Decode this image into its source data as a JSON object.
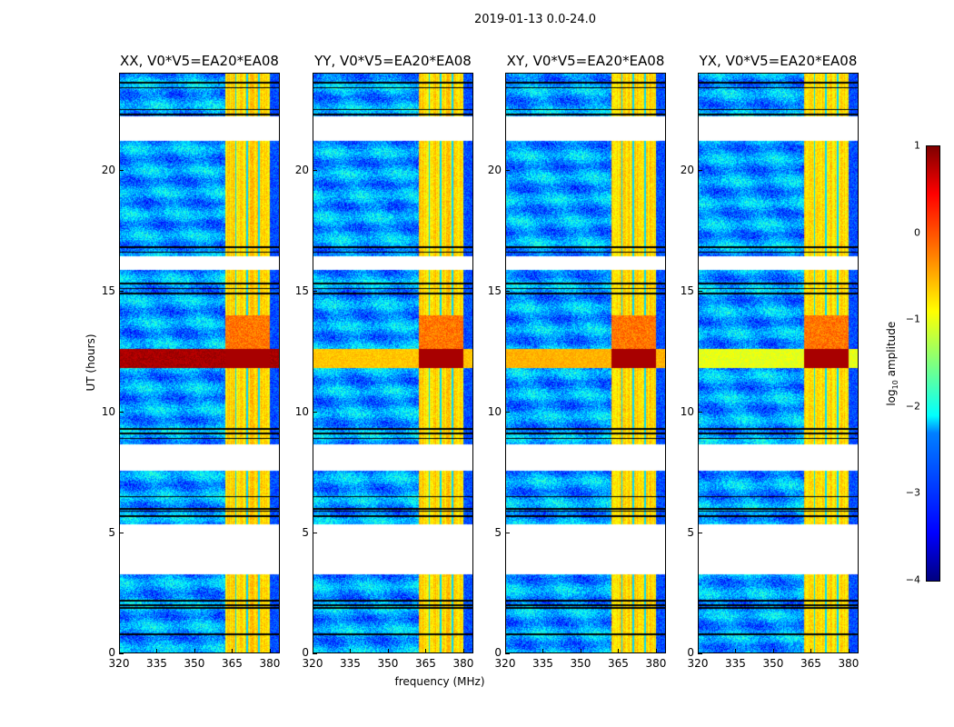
{
  "chart_data": {
    "type": "heatmap",
    "title": "2019-01-13 0.0-24.0",
    "xlabel": "frequency (MHz)",
    "ylabel": "UT (hours)",
    "xlim": [
      320,
      384
    ],
    "ylim": [
      0,
      24
    ],
    "xticks": [
      "320",
      "335",
      "350",
      "365",
      "380"
    ],
    "xtick_values": [
      320,
      335,
      350,
      365,
      380
    ],
    "yticks": [
      "0",
      "5",
      "10",
      "15",
      "20"
    ],
    "ytick_values": [
      0,
      5,
      10,
      15,
      20
    ],
    "panels": [
      {
        "title": "XX, V0*V5=EA20*EA08",
        "rfi_broadband_level": 0.8
      },
      {
        "title": "YY, V0*V5=EA20*EA08",
        "rfi_broadband_level": -0.6
      },
      {
        "title": "XY, V0*V5=EA20*EA08",
        "rfi_broadband_level": -0.5
      },
      {
        "title": "YX, V0*V5=EA20*EA08",
        "rfi_broadband_level": -1.0
      }
    ],
    "data_gaps_hours": [
      [
        21.2,
        22.2
      ],
      [
        15.85,
        16.45
      ],
      [
        7.55,
        8.65
      ],
      [
        3.3,
        5.35
      ]
    ],
    "flagged_lines_hours": [
      0.8,
      1.9,
      2.0,
      2.2,
      5.7,
      5.9,
      6.0,
      6.5,
      8.9,
      9.1,
      9.3,
      14.9,
      15.1,
      15.3,
      16.6,
      16.8,
      22.3,
      22.5,
      23.4,
      23.6
    ],
    "rfi_band_mhz": [
      362,
      380
    ],
    "rfi_band_level": -0.9,
    "rfi_event_hours": [
      11.8,
      12.6
    ],
    "background_level": -2.6,
    "colorbar": {
      "label": "log10 amplitude",
      "range": [
        -4,
        1
      ],
      "ticks": [
        "1",
        "0",
        "−1",
        "−2",
        "−3",
        "−4"
      ],
      "tick_values": [
        1,
        0,
        -1,
        -2,
        -3,
        -4
      ],
      "colormap": "jet"
    }
  }
}
